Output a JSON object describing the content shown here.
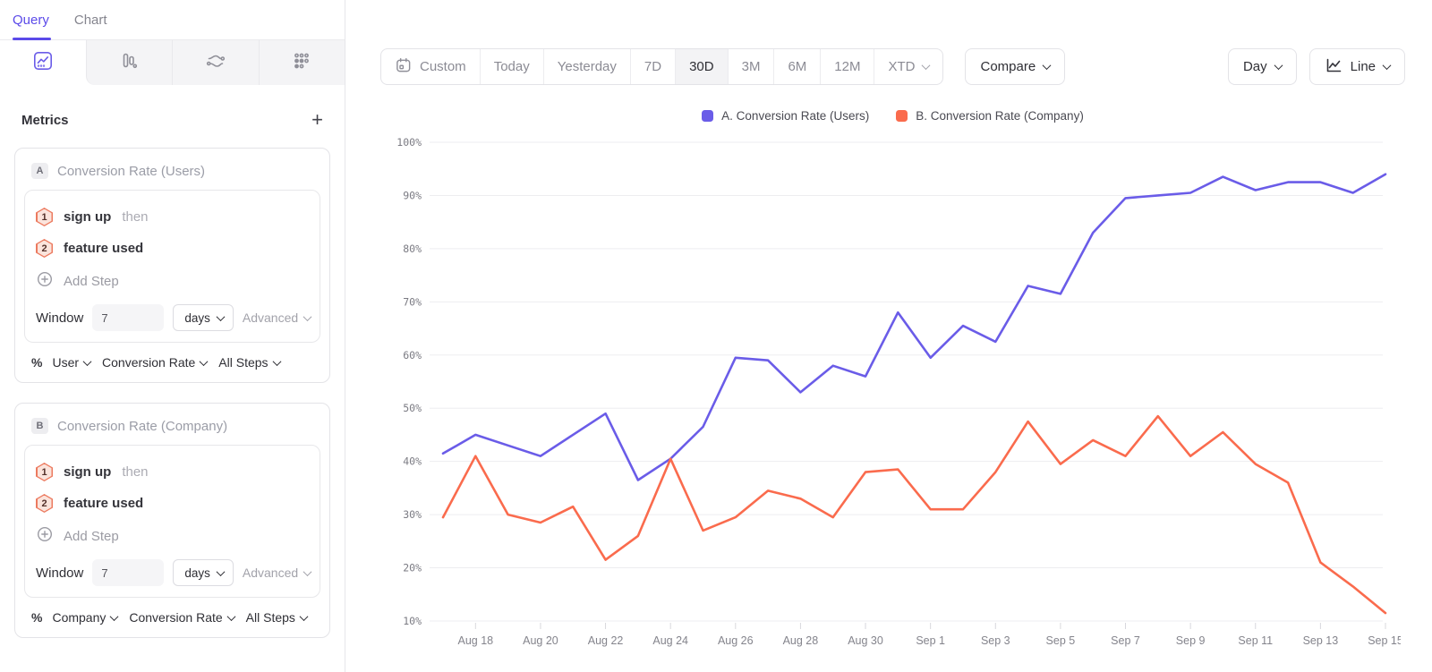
{
  "colors": {
    "accent_purple": "#5B4AE9",
    "series_a": "#6A5CE8",
    "series_b": "#FA6B4D",
    "selected_segment_bg": "#F3F3F5",
    "gridline": "#EDEDF0"
  },
  "sidebar": {
    "tabs": [
      {
        "label": "Query",
        "active": true
      },
      {
        "label": "Chart",
        "active": false
      }
    ],
    "view_switcher": [
      {
        "icon": "insights-line-chart",
        "selected": true
      },
      {
        "icon": "funnel-bars",
        "selected": false
      },
      {
        "icon": "flows-curves",
        "selected": false
      },
      {
        "icon": "retention-dots",
        "selected": false
      }
    ],
    "metrics_header": {
      "title": "Metrics",
      "add_label": "+"
    },
    "metric_cards": [
      {
        "badge": "A",
        "title": "Conversion Rate (Users)",
        "steps": [
          {
            "num": "1",
            "event": "sign up",
            "suffix": "then"
          },
          {
            "num": "2",
            "event": "feature used",
            "suffix": ""
          }
        ],
        "add_step_label": "Add Step",
        "window_label": "Window",
        "window_value": "7",
        "window_unit": "days",
        "advanced_label": "Advanced",
        "measure": {
          "symbol": "%",
          "entity": "User",
          "metric": "Conversion Rate",
          "steps_scope": "All Steps"
        }
      },
      {
        "badge": "B",
        "title": "Conversion Rate (Company)",
        "steps": [
          {
            "num": "1",
            "event": "sign up",
            "suffix": "then"
          },
          {
            "num": "2",
            "event": "feature used",
            "suffix": ""
          }
        ],
        "add_step_label": "Add Step",
        "window_label": "Window",
        "window_value": "7",
        "window_unit": "days",
        "advanced_label": "Advanced",
        "measure": {
          "symbol": "%",
          "entity": "Company",
          "metric": "Conversion Rate",
          "steps_scope": "All Steps"
        }
      }
    ]
  },
  "toolbar": {
    "date_ranges": [
      {
        "label": "Custom",
        "icon": "calendar",
        "selected": false
      },
      {
        "label": "Today",
        "selected": false
      },
      {
        "label": "Yesterday",
        "selected": false
      },
      {
        "label": "7D",
        "selected": false
      },
      {
        "label": "30D",
        "selected": true
      },
      {
        "label": "3M",
        "selected": false
      },
      {
        "label": "6M",
        "selected": false
      },
      {
        "label": "12M",
        "selected": false
      },
      {
        "label": "XTD",
        "selected": false,
        "chevron": true
      }
    ],
    "compare_label": "Compare",
    "granularity_label": "Day",
    "chart_type_label": "Line"
  },
  "legend": [
    {
      "label": "A. Conversion Rate (Users)",
      "color": "#6A5CE8"
    },
    {
      "label": "B. Conversion Rate (Company)",
      "color": "#FA6B4D"
    }
  ],
  "chart_data": {
    "type": "line",
    "title": "",
    "xlabel": "",
    "ylabel": "",
    "ylim": [
      10,
      100
    ],
    "grid": "horizontal",
    "legend_position": "top-center",
    "y_ticks": [
      100,
      90,
      80,
      70,
      60,
      50,
      40,
      30,
      20,
      10
    ],
    "y_tick_labels": [
      "100%",
      "90%",
      "80%",
      "70%",
      "60%",
      "50%",
      "40%",
      "30%",
      "20%",
      "10%"
    ],
    "x": [
      "Aug 17",
      "Aug 18",
      "Aug 19",
      "Aug 20",
      "Aug 21",
      "Aug 22",
      "Aug 23",
      "Aug 24",
      "Aug 25",
      "Aug 26",
      "Aug 27",
      "Aug 28",
      "Aug 29",
      "Aug 30",
      "Aug 31",
      "Sep 1",
      "Sep 2",
      "Sep 3",
      "Sep 4",
      "Sep 5",
      "Sep 6",
      "Sep 7",
      "Sep 8",
      "Sep 9",
      "Sep 10",
      "Sep 11",
      "Sep 12",
      "Sep 13",
      "Sep 14",
      "Sep 15"
    ],
    "x_tick_indices": [
      1,
      3,
      5,
      7,
      9,
      11,
      13,
      15,
      17,
      19,
      21,
      23,
      25,
      27,
      29
    ],
    "series": [
      {
        "name": "A. Conversion Rate (Users)",
        "color": "#6A5CE8",
        "values": [
          41.5,
          45,
          43,
          41,
          45,
          49,
          36.5,
          40.5,
          46.5,
          59.5,
          59,
          53,
          58,
          56,
          68,
          59.5,
          65.5,
          62.5,
          73,
          71.5,
          83,
          89.5,
          90,
          90.5,
          93.5,
          91,
          92.5,
          92.5,
          90.5,
          94
        ]
      },
      {
        "name": "B. Conversion Rate (Company)",
        "color": "#FA6B4D",
        "values": [
          29.5,
          41,
          30,
          28.5,
          31.5,
          21.5,
          26,
          40.5,
          27,
          29.5,
          34.5,
          33,
          29.5,
          38,
          38.5,
          31,
          31,
          38,
          47.5,
          39.5,
          44,
          41,
          48.5,
          41,
          45.5,
          39.5,
          36,
          21,
          16.5,
          11.5
        ]
      }
    ]
  }
}
